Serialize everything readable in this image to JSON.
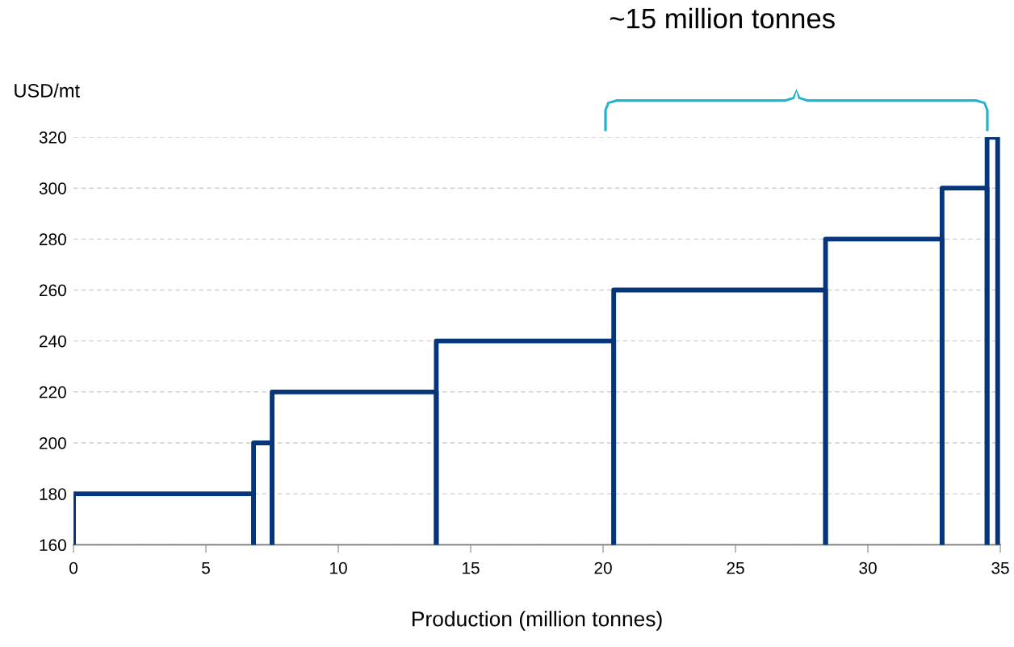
{
  "chart_data": {
    "type": "histogram",
    "title": "~15 million tonnes",
    "xlabel": "Production (million tonnes)",
    "ylabel": "USD/mt",
    "bins": [
      0,
      6.8,
      7.5,
      13.7,
      20.4,
      28.4,
      32.8,
      34.5,
      34.9
    ],
    "values": [
      180,
      200,
      220,
      240,
      260,
      280,
      300,
      320
    ],
    "color": "#06357a",
    "xlim": [
      0,
      35
    ],
    "xticks": [
      0,
      5,
      10,
      15,
      20,
      25,
      30,
      35
    ],
    "ylim": [
      160,
      320
    ],
    "yticks": [
      160,
      180,
      200,
      220,
      240,
      260,
      280,
      300,
      320
    ],
    "grid": "y"
  }
}
